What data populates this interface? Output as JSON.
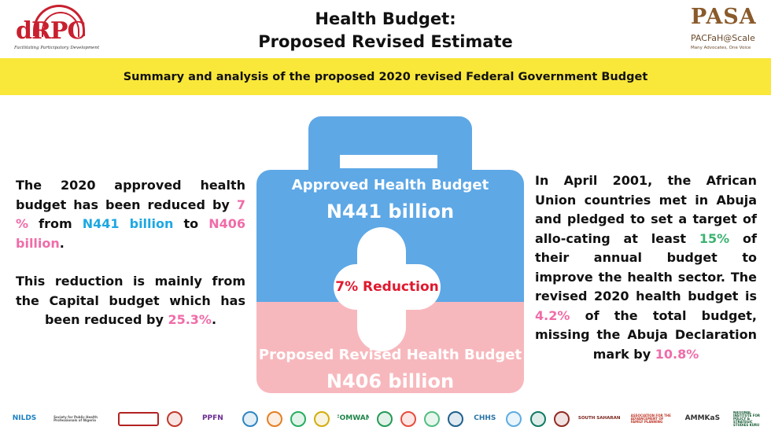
{
  "header": {
    "title_line1": "Health Budget:",
    "title_line2": "Proposed Revised Estimate",
    "logo_left": {
      "text": "dRPC",
      "tagline": "Facilitating Participatory Development"
    },
    "logo_right": {
      "text": "PASA",
      "tagline1": "PACFaH@Scale",
      "tagline2": "Many Advocates, One Voice"
    }
  },
  "banner": {
    "text": "Summary and analysis of the proposed 2020 revised Federal Government Budget",
    "background": "#f9e73a"
  },
  "left_text": {
    "p1_a": "The 2020 approved health budget has been reduced by ",
    "p1_pct": "7 %",
    "p1_b": " from ",
    "p1_from": "N441 billion",
    "p1_c": " to ",
    "p1_to": "N406 billion",
    "p1_d": ".",
    "p2_a": "This reduction is mainly from the Capital budget which has been reduced by ",
    "p2_pct": "25.3%",
    "p2_b": "."
  },
  "kit": {
    "approved_label": "Approved Health Budget",
    "approved_amount": "N441 billion",
    "reduction_label": "7% Reduction",
    "proposed_label": "Proposed Revised Health Budget",
    "proposed_amount": "N406 billion",
    "colors": {
      "approved": "#5ea8e6",
      "proposed": "#f7b8bd",
      "reduction_text": "#e0192e"
    }
  },
  "right_text": {
    "a": "In April 2001, the African Union countries met in Abuja and pledged to set a target of allo-cating at least ",
    "target_pct": "15%",
    "b": " of their annual budget to improve the health sector. The revised 2020 health budget is ",
    "actual_pct": "4.2%",
    "c": " of the total budget, missing the Abuja Declaration mark by ",
    "gap_pct": "10.8%"
  },
  "text_colors": {
    "blue": "#1da8e2",
    "pink": "#f06ca8",
    "green": "#3cb371"
  },
  "partners": [
    {
      "kind": "word",
      "text": "NILDS",
      "color": "#1c7fc1"
    },
    {
      "kind": "word",
      "text": "Society for Public Health Professionals of Nigeria",
      "color": "#555555"
    },
    {
      "kind": "word",
      "text": "",
      "color": "#b22222"
    },
    {
      "kind": "round",
      "color": "#c0392b"
    },
    {
      "kind": "word",
      "text": "PPFN",
      "color": "#6a2c91"
    },
    {
      "kind": "round",
      "color": "#2e86c1"
    },
    {
      "kind": "round",
      "color": "#e67e22"
    },
    {
      "kind": "round",
      "color": "#27ae60"
    },
    {
      "kind": "round",
      "color": "#d4ac0d"
    },
    {
      "kind": "word",
      "text": "FOMWAN",
      "color": "#1e8449"
    },
    {
      "kind": "round",
      "color": "#239b56"
    },
    {
      "kind": "round",
      "color": "#e74c3c"
    },
    {
      "kind": "round",
      "color": "#52be80"
    },
    {
      "kind": "round",
      "color": "#1f618d"
    },
    {
      "kind": "word",
      "text": "CHHS",
      "color": "#2874a6"
    },
    {
      "kind": "round",
      "color": "#5dade2"
    },
    {
      "kind": "round",
      "color": "#117a65"
    },
    {
      "kind": "round",
      "color": "#922b21"
    },
    {
      "kind": "word",
      "text": "SOUTH SAHARAN",
      "color": "#7b241c"
    },
    {
      "kind": "word",
      "text": "ASSOCIATION FOR THE ADVANCEMENT OF FAMILY PLANNING",
      "color": "#c0392b"
    },
    {
      "kind": "word",
      "text": "AMMKaS",
      "color": "#333333"
    },
    {
      "kind": "word",
      "text": "NATIONAL INSTITUTE FOR POLICY & STRATEGIC STUDIES KURU",
      "color": "#145a32"
    }
  ]
}
